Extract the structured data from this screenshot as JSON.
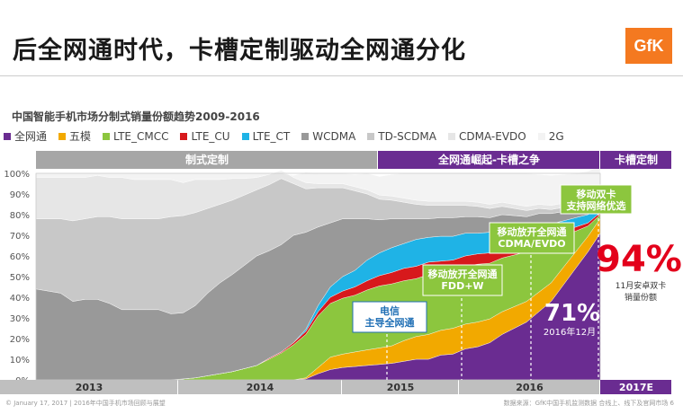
{
  "page": {
    "title": "后全网通时代，卡槽定制驱动全网通分化",
    "logo_text": "GfK",
    "footer_left": "© January 17, 2017 | 2016年中国手机市场回顾与展望",
    "footer_right": "数据来源：GfK中国手机监测数据 合线上、线下及官网市场    6"
  },
  "chart_data": {
    "type": "area",
    "title": "中国智能手机市场分制式销量份额趋势2009-2016",
    "ylim": [
      0,
      100
    ],
    "yticks": [
      "0%",
      "10%",
      "20%",
      "30%",
      "40%",
      "50%",
      "60%",
      "70%",
      "80%",
      "90%",
      "100%"
    ],
    "x_periods": [
      "2013",
      "2014",
      "2015",
      "2016",
      "2017E"
    ],
    "legend": [
      {
        "name": "全网通",
        "color": "#6a2c91"
      },
      {
        "name": "五模",
        "color": "#f2a900"
      },
      {
        "name": "LTE_CMCC",
        "color": "#8cc63e"
      },
      {
        "name": "LTE_CU",
        "color": "#d7191c"
      },
      {
        "name": "LTE_CT",
        "color": "#1fb3e6"
      },
      {
        "name": "WCDMA",
        "color": "#999999"
      },
      {
        "name": "TD-SCDMA",
        "color": "#c8c8c8"
      },
      {
        "name": "CDMA-EVDO",
        "color": "#e6e6e6"
      },
      {
        "name": "2G",
        "color": "#f3f3f3"
      }
    ],
    "x": [
      0,
      2,
      3,
      4,
      5,
      6,
      7,
      8,
      9,
      10,
      11,
      12,
      13,
      14,
      15,
      16,
      17,
      18,
      19,
      20,
      21,
      22,
      23,
      24,
      25,
      26,
      27,
      28,
      29,
      30,
      31,
      32,
      33,
      34,
      35,
      36,
      37,
      38,
      39,
      40,
      41,
      42,
      43,
      44,
      45,
      46
    ],
    "series": [
      {
        "name": "全网通",
        "values": [
          0,
          0,
          0,
          0,
          0,
          0,
          0,
          0,
          0,
          0,
          0,
          0,
          0,
          0,
          0,
          0,
          0,
          0,
          0,
          0,
          0,
          0.5,
          3,
          5,
          6,
          6.5,
          7,
          7.5,
          8,
          9,
          10,
          10,
          12,
          12.5,
          15,
          16,
          18,
          22,
          25,
          28,
          33,
          38,
          46,
          54,
          62,
          71
        ]
      },
      {
        "name": "五模",
        "values": [
          0,
          0,
          0,
          0,
          0,
          0,
          0,
          0,
          0,
          0,
          0,
          0,
          0,
          0,
          0,
          0,
          0,
          0,
          0,
          0,
          0,
          0.5,
          3,
          6,
          6.5,
          7,
          7.5,
          8,
          8.5,
          10,
          11,
          12,
          12,
          12.5,
          12,
          12,
          11.5,
          11,
          10.5,
          10,
          9.5,
          9,
          8.5,
          8,
          7.5,
          7
        ]
      },
      {
        "name": "LTE_CMCC",
        "values": [
          0,
          0,
          0,
          0,
          0,
          0,
          0,
          0,
          0,
          0,
          0,
          0.5,
          1,
          2,
          3,
          4,
          5.5,
          7,
          10,
          13,
          17,
          21,
          25,
          26,
          27,
          27.5,
          29,
          30,
          30,
          29,
          28,
          29,
          28,
          28,
          28,
          28,
          27,
          26,
          25,
          24,
          23,
          20,
          15,
          10,
          5,
          2
        ]
      },
      {
        "name": "LTE_CU",
        "values": [
          0,
          0,
          0,
          0,
          0,
          0,
          0,
          0,
          0,
          0,
          0,
          0,
          0,
          0,
          0,
          0,
          0,
          0,
          0.5,
          0.5,
          1,
          1.5,
          2,
          3,
          3.5,
          4,
          4.5,
          5,
          5.5,
          6,
          6,
          6,
          5.5,
          5,
          5,
          5,
          5,
          5,
          4.5,
          4,
          3.5,
          3,
          2.5,
          2,
          1.5,
          1
        ]
      },
      {
        "name": "LTE_CT",
        "values": [
          0,
          0,
          0,
          0,
          0,
          0,
          0,
          0,
          0,
          0,
          0,
          0,
          0,
          0,
          0,
          0,
          0,
          0,
          0,
          0,
          0,
          1,
          3,
          5,
          7,
          8,
          10,
          11,
          12,
          12,
          13,
          12,
          12,
          11.5,
          11,
          10,
          10,
          9,
          8,
          7,
          6,
          5.5,
          5,
          4.5,
          4,
          3.5
        ]
      },
      {
        "name": "WCDMA",
        "values": [
          44,
          42,
          38,
          39,
          39,
          37,
          34,
          34,
          34,
          34,
          32,
          32,
          35,
          40,
          44,
          47,
          50,
          53,
          52,
          52,
          52,
          47,
          38,
          31,
          28,
          25,
          20,
          16,
          14,
          12,
          10,
          9,
          9,
          9,
          8,
          8,
          7,
          7,
          6.5,
          6,
          5.5,
          5,
          4.5,
          4,
          3.5,
          3
        ]
      },
      {
        "name": "TD-SCDMA",
        "values": [
          34,
          36,
          39,
          39,
          40,
          42,
          44,
          44,
          44,
          44,
          47,
          47,
          45,
          41,
          38,
          36,
          34,
          32,
          32,
          32,
          25,
          21,
          19,
          17,
          15,
          13.5,
          12,
          10,
          9,
          8,
          7,
          6.5,
          6,
          6,
          5.5,
          5,
          4.5,
          4,
          3.5,
          3,
          2.5,
          2,
          2,
          1.5,
          1.5,
          1
        ]
      },
      {
        "name": "CDMA-EVDO",
        "values": [
          20,
          20,
          21,
          20,
          20,
          19,
          20,
          19,
          19,
          19,
          18,
          16,
          16,
          14,
          12,
          10.5,
          8,
          6,
          5,
          4,
          3,
          3,
          2,
          2,
          2,
          2,
          2,
          2,
          2,
          2,
          2,
          2,
          2,
          2,
          2,
          2,
          2,
          2,
          2,
          2,
          2,
          2,
          2,
          1.5,
          1,
          0.5
        ]
      },
      {
        "name": "2G",
        "values": [
          2,
          2,
          2,
          2,
          1,
          2,
          2,
          3,
          3,
          3,
          3,
          4.5,
          3,
          3,
          3,
          2.5,
          2.5,
          2,
          0.5,
          -1.5,
          1,
          5,
          5,
          5,
          5,
          6,
          8,
          9,
          10.5,
          12,
          13,
          13.5,
          13.5,
          13.5,
          13.5,
          14,
          15,
          14,
          15,
          16,
          14.5,
          14.5,
          14,
          14.5,
          15,
          14.5
        ]
      }
    ],
    "bands": [
      {
        "label": "制式定制",
        "color": "#a6a6a6"
      },
      {
        "label": "全网通崛起-卡槽之争",
        "color": "#6a2c91"
      },
      {
        "label": "卡槽定制",
        "color": "#6a2c91"
      }
    ],
    "annotations": [
      {
        "label": "电信\n主导全网通",
        "style": "blue"
      },
      {
        "label": "移动放开全网通\nFDD+W",
        "style": "green"
      },
      {
        "label": "移动放开全网通\nCDMA/EVDO",
        "style": "green"
      },
      {
        "label": "移动双卡\n支持网络优选",
        "style": "green"
      }
    ],
    "big_stat": {
      "value": "71%",
      "caption": "2016年12月"
    },
    "side_stat": {
      "value": "94%",
      "caption": "11月安卓双卡\n销量份额"
    }
  }
}
